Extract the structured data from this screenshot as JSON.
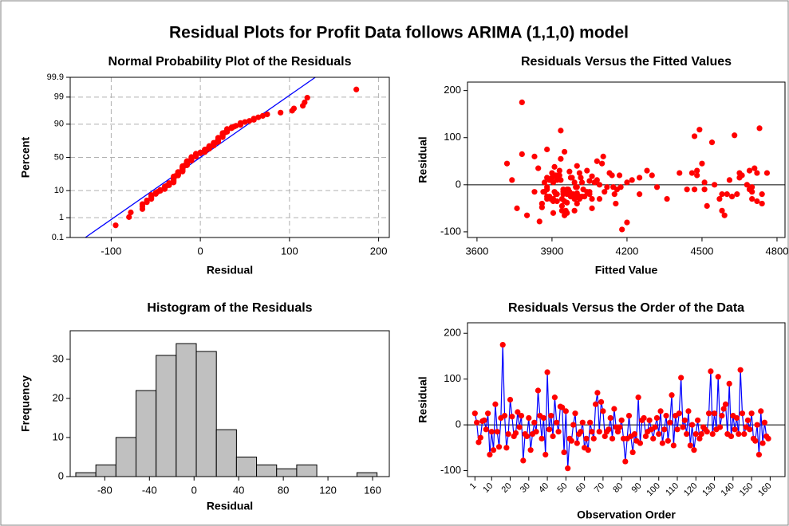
{
  "title": "Residual Plots for Profit Data follows ARIMA (1,1,0) model",
  "chart_data": [
    {
      "type": "probability",
      "title": "Normal Probability Plot of the Residuals",
      "xlabel": "Residual",
      "ylabel": "Percent",
      "x": [
        25,
        5,
        -38,
        -28,
        8,
        10,
        -10,
        25,
        -65,
        -15,
        -55,
        45,
        -15,
        -48,
        15,
        175,
        20,
        -50,
        -20,
        55,
        18,
        -25,
        -18,
        28,
        -5,
        20,
        -78,
        -20,
        -25,
        15,
        -55,
        -20,
        5,
        -15,
        75,
        20,
        -30,
        15,
        -65,
        115,
        -10,
        20,
        -25,
        60,
        5,
        -15,
        40,
        38,
        -60,
        30,
        -95,
        -30,
        -35,
        0,
        25,
        -40,
        -20,
        -15,
        5,
        -50,
        -30,
        -55,
        5,
        -15,
        -30,
        45,
        70,
        -15,
        50,
        30,
        -25,
        -15,
        -10,
        15,
        -30,
        35,
        -5,
        -15,
        -5,
        10,
        -30,
        -80,
        -30,
        20,
        -25,
        -60,
        -20,
        -35,
        60,
        -40,
        10,
        15,
        -25,
        -15,
        10,
        -10,
        -30,
        -5,
        15,
        -20,
        30,
        -40,
        -10,
        20,
        -35,
        5,
        65,
        -45,
        20,
        -10,
        25,
        103,
        -5,
        10,
        -20,
        30,
        -45,
        0,
        -55,
        -20,
        10,
        -30,
        -20,
        -5,
        -10,
        -15,
        25,
        117,
        -20,
        25,
        -10,
        105,
        -5,
        20,
        35,
        45,
        -20,
        90,
        -25,
        20,
        -10,
        15,
        -20,
        120,
        25,
        -20,
        -5,
        10,
        -10,
        25,
        -30,
        -35,
        0,
        -65,
        30,
        -40,
        5,
        -25,
        -30
      ],
      "fit_line": {
        "x": [
          -129,
          129
        ],
        "y": [
          0.1,
          99.9
        ]
      },
      "color": "#ff0000",
      "fit_color": "#0000ff",
      "xlim": [
        -146,
        212
      ],
      "ylim": [
        0.1,
        99.9
      ],
      "xticks": [
        -100,
        0,
        100,
        200
      ],
      "yticks": [
        0.1,
        1,
        10,
        50,
        90,
        99,
        99.9
      ],
      "grid": true
    },
    {
      "type": "scatter",
      "title": "Residuals Versus the Fitted Values",
      "xlabel": "Fitted Value",
      "ylabel": "Residual",
      "x": [
        3900,
        3870,
        3960,
        3990,
        4050,
        3920,
        3880,
        4010,
        3950,
        3830,
        3940,
        4100,
        3910,
        3860,
        3980,
        3780,
        3925,
        3760,
        3945,
        3935,
        4060,
        3890,
        4000,
        3970,
        4120,
        3915,
        3850,
        3960,
        4030,
        3880,
        3990,
        4150,
        3905,
        3945,
        3880,
        3930,
        4060,
        3975,
        3800,
        3935,
        4025,
        3910,
        3990,
        3830,
        4070,
        3955,
        4000,
        3910,
        3905,
        4040,
        4180,
        3880,
        3950,
        4090,
        4130,
        3860,
        3920,
        3970,
        4020,
        4060,
        3895,
        3955,
        4200,
        3865,
        3990,
        3720,
        3950,
        4110,
        4080,
        3930,
        4010,
        3870,
        3965,
        3900,
        4010,
        3845,
        3995,
        4040,
        4145,
        4220,
        3905,
        4200,
        3940,
        4170,
        3880,
        3960,
        3985,
        3920,
        4105,
        4155,
        3935,
        4015,
        3975,
        4050,
        3890,
        3945,
        4090,
        4175,
        4250,
        3915,
        4280,
        4000,
        3960,
        4140,
        3905,
        3990,
        3780,
        3940,
        4300,
        4160,
        4410,
        4470,
        4000,
        4080,
        3980,
        4480,
        4520,
        4550,
        4580,
        4640,
        3740,
        4360,
        4600,
        3880,
        4690,
        4700,
        4720,
        4490,
        4740,
        4460,
        4510,
        4630,
        4320,
        4660,
        4710,
        4500,
        4250,
        4540,
        4020,
        4480,
        4440,
        4650,
        4050,
        4730,
        4760,
        4580,
        4700,
        4610,
        4470,
        4650,
        4570,
        4720,
        4680,
        4590,
        4690,
        4740,
        4510,
        4620,
        4700
      ],
      "y": [
        25,
        5,
        -38,
        -28,
        8,
        10,
        -10,
        25,
        -65,
        -15,
        -55,
        45,
        -15,
        -48,
        15,
        175,
        20,
        -50,
        -20,
        55,
        18,
        -25,
        -18,
        28,
        -5,
        20,
        -78,
        -20,
        -25,
        15,
        -55,
        -20,
        5,
        -15,
        75,
        20,
        -30,
        15,
        -65,
        115,
        -10,
        20,
        -25,
        60,
        5,
        -15,
        40,
        38,
        -60,
        30,
        -95,
        -30,
        -35,
        0,
        25,
        -40,
        -20,
        -15,
        5,
        -50,
        -30,
        -55,
        5,
        -15,
        -30,
        45,
        70,
        -15,
        50,
        30,
        -25,
        -15,
        -10,
        15,
        -30,
        35,
        -5,
        -15,
        -5,
        10,
        -30,
        -80,
        -30,
        20,
        -25,
        -60,
        -20,
        -35,
        60,
        -40,
        10,
        15,
        -25,
        -15,
        10,
        -10,
        -30,
        -5,
        15,
        -20,
        30,
        -40,
        -10,
        20,
        -35,
        5,
        65,
        -45,
        20,
        -10,
        25,
        103,
        -5,
        10,
        -20,
        30,
        -45,
        0,
        -55,
        -20,
        10,
        -30,
        -20,
        -5,
        -10,
        -15,
        25,
        117,
        -20,
        25,
        -10,
        105,
        -5,
        20,
        35,
        45,
        -20,
        90,
        -25,
        20,
        -10,
        15,
        -20,
        120,
        25,
        -20,
        -5,
        10,
        -10,
        25,
        -30,
        -35,
        0,
        -65,
        30,
        -40,
        5,
        -25,
        -30
      ],
      "reference_line": 0,
      "color": "#ff0000",
      "xlim": [
        3562,
        4832
      ],
      "ylim": [
        -112,
        218
      ],
      "xticks": [
        3600,
        3900,
        4200,
        4500,
        4800
      ],
      "yticks": [
        -100,
        0,
        100,
        200
      ]
    },
    {
      "type": "histogram",
      "title": "Histogram of the Residuals",
      "xlabel": "Residual",
      "ylabel": "Frequency",
      "bins": [
        -106,
        -88,
        -70,
        -52,
        -34,
        -16,
        2,
        20,
        38,
        56,
        74,
        92,
        110,
        128,
        146,
        164
      ],
      "values": [
        1,
        3,
        10,
        22,
        31,
        34,
        32,
        12,
        5,
        3,
        2,
        3,
        0,
        0,
        1
      ],
      "color": "#c0c0c0",
      "xlim": [
        -111,
        175
      ],
      "ylim": [
        0,
        37.3
      ],
      "xticks": [
        -80,
        -40,
        0,
        40,
        80,
        120,
        160
      ],
      "yticks": [
        0,
        10,
        20,
        30
      ]
    },
    {
      "type": "line",
      "title": "Residuals Versus the Order of the Data",
      "xlabel": "Observation Order",
      "ylabel": "Residual",
      "x": [
        1,
        2,
        3,
        4,
        5,
        6,
        7,
        8,
        9,
        10,
        11,
        12,
        13,
        14,
        15,
        16,
        17,
        18,
        19,
        20,
        21,
        22,
        23,
        24,
        25,
        26,
        27,
        28,
        29,
        30,
        31,
        32,
        33,
        34,
        35,
        36,
        37,
        38,
        39,
        40,
        41,
        42,
        43,
        44,
        45,
        46,
        47,
        48,
        49,
        50,
        51,
        52,
        53,
        54,
        55,
        56,
        57,
        58,
        59,
        60,
        61,
        62,
        63,
        64,
        65,
        66,
        67,
        68,
        69,
        70,
        71,
        72,
        73,
        74,
        75,
        76,
        77,
        78,
        79,
        80,
        81,
        82,
        83,
        84,
        85,
        86,
        87,
        88,
        89,
        90,
        91,
        92,
        93,
        94,
        95,
        96,
        97,
        98,
        99,
        100,
        101,
        102,
        103,
        104,
        105,
        106,
        107,
        108,
        109,
        110,
        111,
        112,
        113,
        114,
        115,
        116,
        117,
        118,
        119,
        120,
        121,
        122,
        123,
        124,
        125,
        126,
        127,
        128,
        129,
        130,
        131,
        132,
        133,
        134,
        135,
        136,
        137,
        138,
        139,
        140,
        141,
        142,
        143,
        144,
        145,
        146,
        147,
        148,
        149,
        150,
        151,
        152,
        153,
        154,
        155,
        156,
        157,
        158,
        159
      ],
      "values": [
        25,
        5,
        -38,
        -28,
        8,
        10,
        -10,
        25,
        -65,
        -15,
        -55,
        45,
        -15,
        -48,
        15,
        175,
        20,
        -50,
        -20,
        55,
        18,
        -25,
        -18,
        28,
        -5,
        20,
        -78,
        -20,
        -25,
        15,
        -55,
        -20,
        5,
        -15,
        75,
        20,
        -30,
        15,
        -65,
        115,
        -10,
        20,
        -25,
        60,
        5,
        -15,
        40,
        38,
        -60,
        30,
        -95,
        -30,
        -35,
        0,
        25,
        -40,
        -20,
        -15,
        5,
        -50,
        -30,
        -55,
        5,
        -15,
        -30,
        45,
        70,
        -15,
        50,
        30,
        -25,
        -15,
        -10,
        15,
        -30,
        35,
        -5,
        -15,
        -5,
        10,
        -30,
        -80,
        -30,
        20,
        -25,
        -60,
        -20,
        -35,
        60,
        -40,
        10,
        15,
        -25,
        -15,
        10,
        -10,
        -30,
        -5,
        15,
        -20,
        30,
        -40,
        -10,
        20,
        -35,
        5,
        65,
        -45,
        20,
        -10,
        25,
        103,
        -5,
        10,
        -20,
        30,
        -45,
        0,
        -55,
        -20,
        10,
        -30,
        -20,
        -5,
        -10,
        -15,
        25,
        117,
        -20,
        25,
        -10,
        105,
        -5,
        20,
        35,
        45,
        -20,
        90,
        -25,
        20,
        -10,
        15,
        -20,
        120,
        25,
        -20,
        -5,
        10,
        -10,
        25,
        -30,
        -35,
        0,
        -65,
        30,
        -40,
        5,
        -25,
        -30
      ],
      "reference_line": 0,
      "color": "#0000ff",
      "marker_color": "#ff0000",
      "xlim": [
        -3,
        168
      ],
      "ylim": [
        -113,
        223
      ],
      "xticks": [
        1,
        10,
        20,
        30,
        40,
        50,
        60,
        70,
        80,
        90,
        100,
        110,
        120,
        130,
        140,
        150,
        160
      ],
      "yticks": [
        -100,
        0,
        100,
        200
      ]
    }
  ]
}
